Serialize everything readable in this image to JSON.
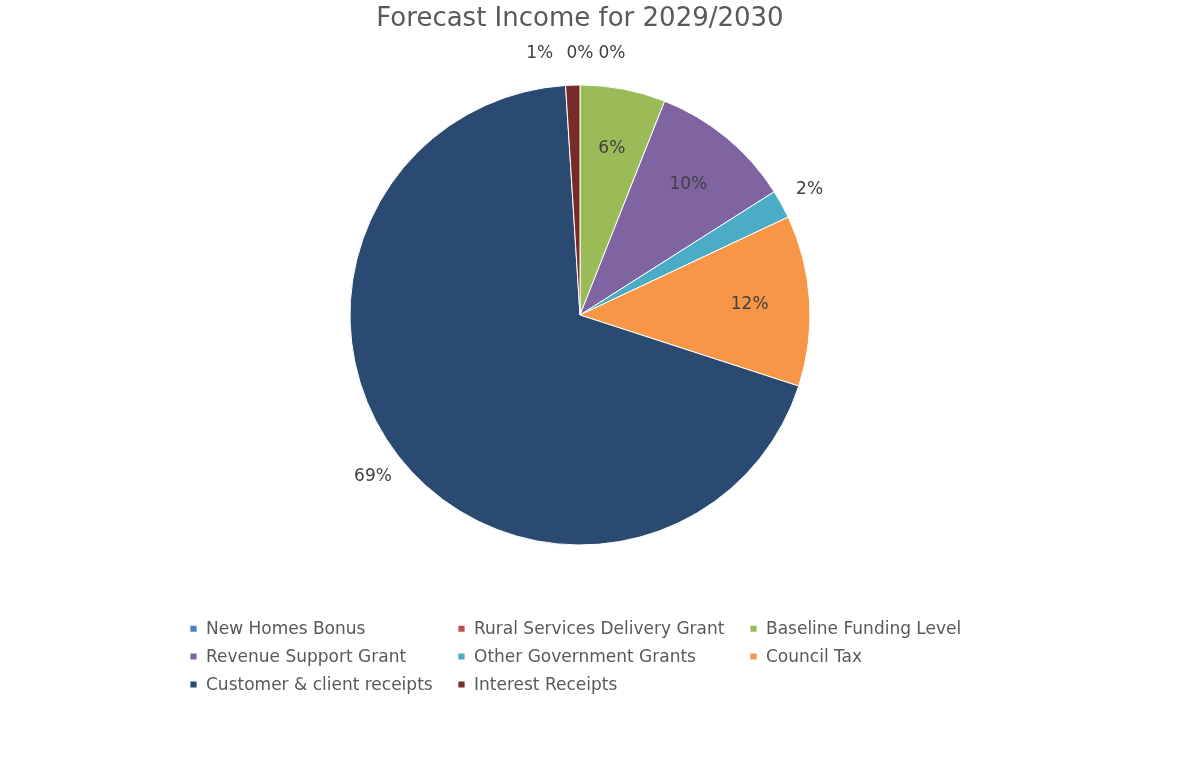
{
  "chart_data": {
    "type": "pie",
    "title": "Forecast Income for 2029/2030",
    "categories": [
      "New Homes Bonus",
      "Rural Services Delivery Grant",
      "Baseline Funding Level",
      "Revenue Support Grant",
      "Other Government Grants",
      "Council Tax",
      "Customer & client receipts",
      "Interest Receipts"
    ],
    "values": [
      0,
      0,
      6,
      10,
      2,
      12,
      69,
      1
    ],
    "value_labels": [
      "0%",
      "0%",
      "6%",
      "10%",
      "2%",
      "12%",
      "69%",
      "1%"
    ],
    "colors": [
      "#4f81bd",
      "#c0504d",
      "#9bbb59",
      "#8064a2",
      "#4bacc6",
      "#f79646",
      "#2b4a71",
      "#772c2a"
    ],
    "legend": "bottom"
  }
}
